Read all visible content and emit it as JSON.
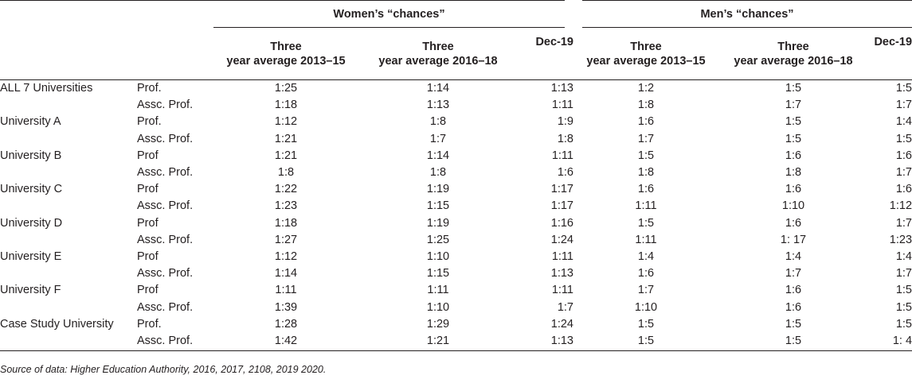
{
  "header": {
    "women_group": "Women’s “chances”",
    "men_group": "Men’s “chances”",
    "columns": [
      {
        "line1": "Three",
        "line2": "year average 2013–15"
      },
      {
        "line1": "Three",
        "line2": "year average 2016–18"
      },
      {
        "line1": "Dec-19",
        "line2": ""
      },
      {
        "line1": "Three",
        "line2": "year average 2013–15"
      },
      {
        "line1": "Three",
        "line2": "year average 2016–18"
      },
      {
        "line1": "Dec-19",
        "line2": ""
      }
    ]
  },
  "rows": [
    {
      "university": "ALL 7 Universities",
      "rank": "Prof.",
      "values": [
        "1:25",
        "1:14",
        "1:13",
        "1:2",
        "1:5",
        "1:5"
      ]
    },
    {
      "university": "",
      "rank": "Assc. Prof.",
      "values": [
        "1:18",
        "1:13",
        "1:11",
        "1:8",
        "1:7",
        "1:7"
      ]
    },
    {
      "university": "University A",
      "rank": "Prof.",
      "values": [
        "1:12",
        "1:8",
        "1:9",
        "1:6",
        "1:5",
        "1:4"
      ]
    },
    {
      "university": "",
      "rank": "Assc. Prof.",
      "values": [
        "1:21",
        "1:7",
        "1:8",
        "1:7",
        "1:5",
        "1:5"
      ]
    },
    {
      "university": "University B",
      "rank": "Prof",
      "values": [
        "1:21",
        "1:14",
        "1:11",
        "1:5",
        "1:6",
        "1:6"
      ]
    },
    {
      "university": "",
      "rank": "Assc. Prof.",
      "values": [
        "1:8",
        "1:8",
        "1:6",
        "1:8",
        "1:8",
        "1:7"
      ]
    },
    {
      "university": "University C",
      "rank": "Prof",
      "values": [
        "1:22",
        "1:19",
        "1:17",
        "1:6",
        "1:6",
        "1:6"
      ]
    },
    {
      "university": "",
      "rank": "Assc. Prof.",
      "values": [
        "1:23",
        "1:15",
        "1:17",
        "1:11",
        "1:10",
        "1:12"
      ]
    },
    {
      "university": "University D",
      "rank": "Prof",
      "values": [
        "1:18",
        "1:19",
        "1:16",
        "1:5",
        "1:6",
        "1:7"
      ]
    },
    {
      "university": "",
      "rank": "Assc. Prof.",
      "values": [
        "1:27",
        "1:25",
        "1:24",
        "1:11",
        "1: 17",
        "1:23"
      ]
    },
    {
      "university": "University E",
      "rank": "Prof",
      "values": [
        "1:12",
        "1:10",
        "1:11",
        "1:4",
        "1:4",
        "1:4"
      ]
    },
    {
      "university": "",
      "rank": "Assc. Prof.",
      "values": [
        "1:14",
        "1:15",
        "1:13",
        "1:6",
        "1:7",
        "1:7"
      ]
    },
    {
      "university": "University F",
      "rank": "Prof",
      "values": [
        "1:11",
        "1:11",
        "1:11",
        "1:7",
        "1:6",
        "1:5"
      ]
    },
    {
      "university": "",
      "rank": "Assc. Prof.",
      "values": [
        "1:39",
        "1:10",
        "1:7",
        "1:10",
        "1:6",
        "1:5"
      ]
    },
    {
      "university": "Case Study University",
      "rank": "Prof.",
      "values": [
        "1:28",
        "1:29",
        "1:24",
        "1:5",
        "1:5",
        "1:5"
      ]
    },
    {
      "university": "",
      "rank": "Assc. Prof.",
      "values": [
        "1:42",
        "1:21",
        "1:13",
        "1:5",
        "1:5",
        "1: 4"
      ]
    }
  ],
  "source": "Source of data: Higher Education Authority, 2016, 2017, 2108, 2019 2020."
}
